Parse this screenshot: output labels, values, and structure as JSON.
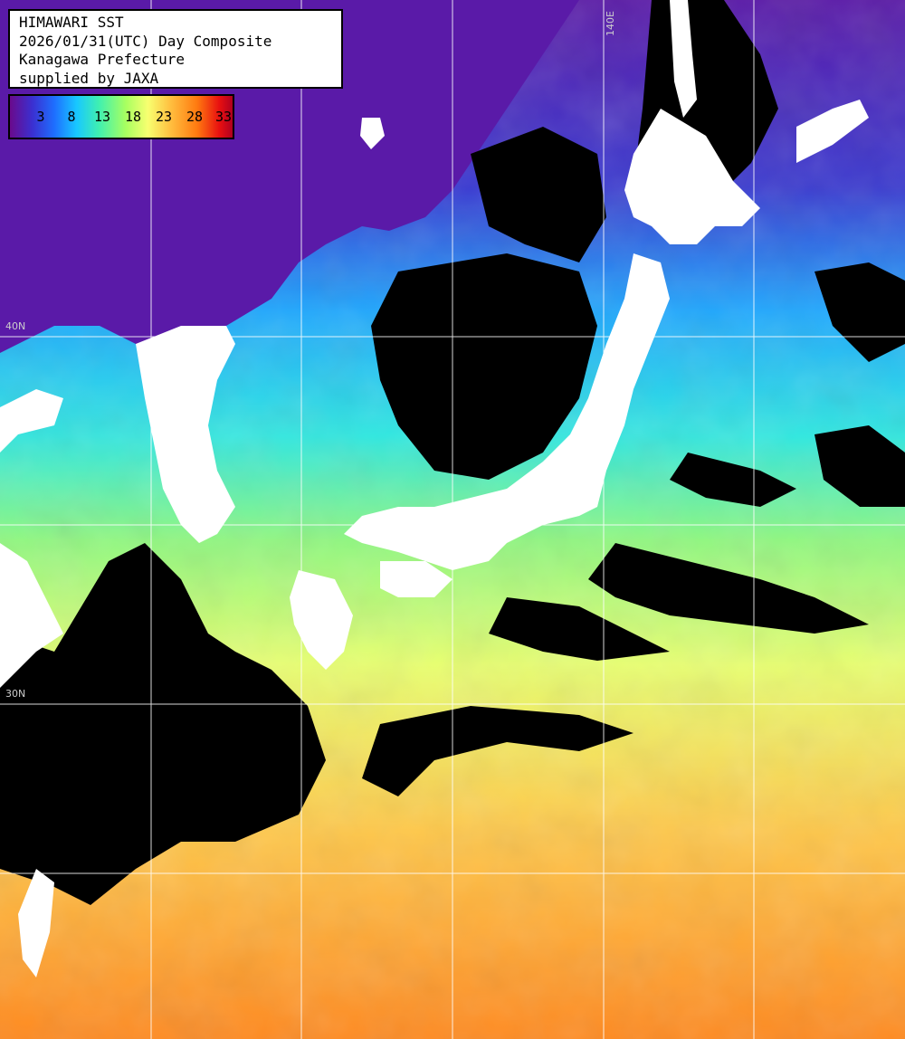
{
  "title": {
    "line1": "HIMAWARI SST",
    "line2": "2026/01/31(UTC) Day Composite",
    "line3": "Kanagawa Prefecture",
    "line4": "supplied by JAXA"
  },
  "legend": {
    "ticks": [
      "3",
      "8",
      "13",
      "18",
      "23",
      "28",
      "33"
    ],
    "unit": "",
    "colors": [
      "#6a0a8c",
      "#3b2fd0",
      "#1e6fff",
      "#18c8ff",
      "#40f0b0",
      "#a8ff60",
      "#f8ff70",
      "#ffc040",
      "#ff7a10",
      "#e81010",
      "#b00020"
    ]
  },
  "grid_labels": {
    "lon_140": "140E",
    "lat_40": "40N",
    "lat_30": "30N"
  },
  "colors": {
    "land": "#ffffff",
    "cloud_mask": "#000000",
    "grid": "#ffffff"
  }
}
